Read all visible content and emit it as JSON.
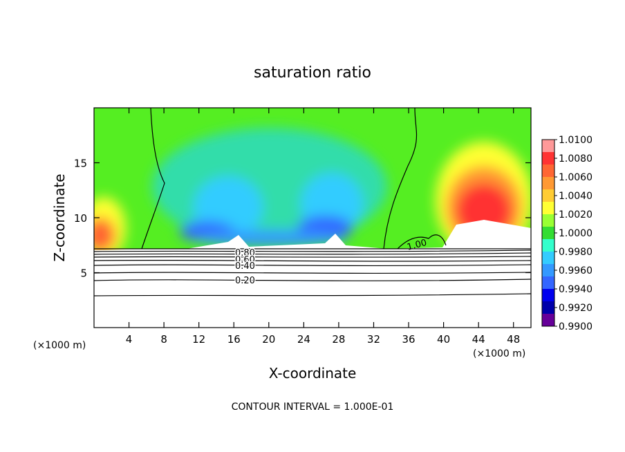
{
  "chart_data": {
    "type": "heatmap",
    "title": "saturation ratio",
    "xlabel": "X-coordinate",
    "ylabel": "Z-coordinate",
    "x_unit_label": "(×1000 m)",
    "x_unit_label_right": "(×1000 m)",
    "footer": "CONTOUR INTERVAL = 1.000E-01",
    "xlim": [
      0,
      50
    ],
    "ylim": [
      0,
      20
    ],
    "x_ticks": [
      "4",
      "8",
      "12",
      "16",
      "20",
      "24",
      "28",
      "32",
      "36",
      "40",
      "44",
      "48"
    ],
    "y_ticks": [
      "5",
      "10",
      "15"
    ],
    "colorbar": {
      "levels": [
        "1.0100",
        "1.0080",
        "1.0060",
        "1.0040",
        "1.0020",
        "1.0000",
        "0.9980",
        "0.9960",
        "0.9940",
        "0.9920",
        "0.9900"
      ],
      "colors": [
        "#ff9999",
        "#ff3333",
        "#ff6633",
        "#ff9933",
        "#ffcc33",
        "#ffff33",
        "#99ff33",
        "#33dd33",
        "#33ffcc",
        "#33ccff",
        "#3399ff",
        "#3366ff",
        "#0000ee",
        "#0000aa",
        "#660099"
      ]
    },
    "contour_labels": [
      "0.80",
      "0.60",
      "0.40",
      "0.20",
      "1.00"
    ]
  }
}
